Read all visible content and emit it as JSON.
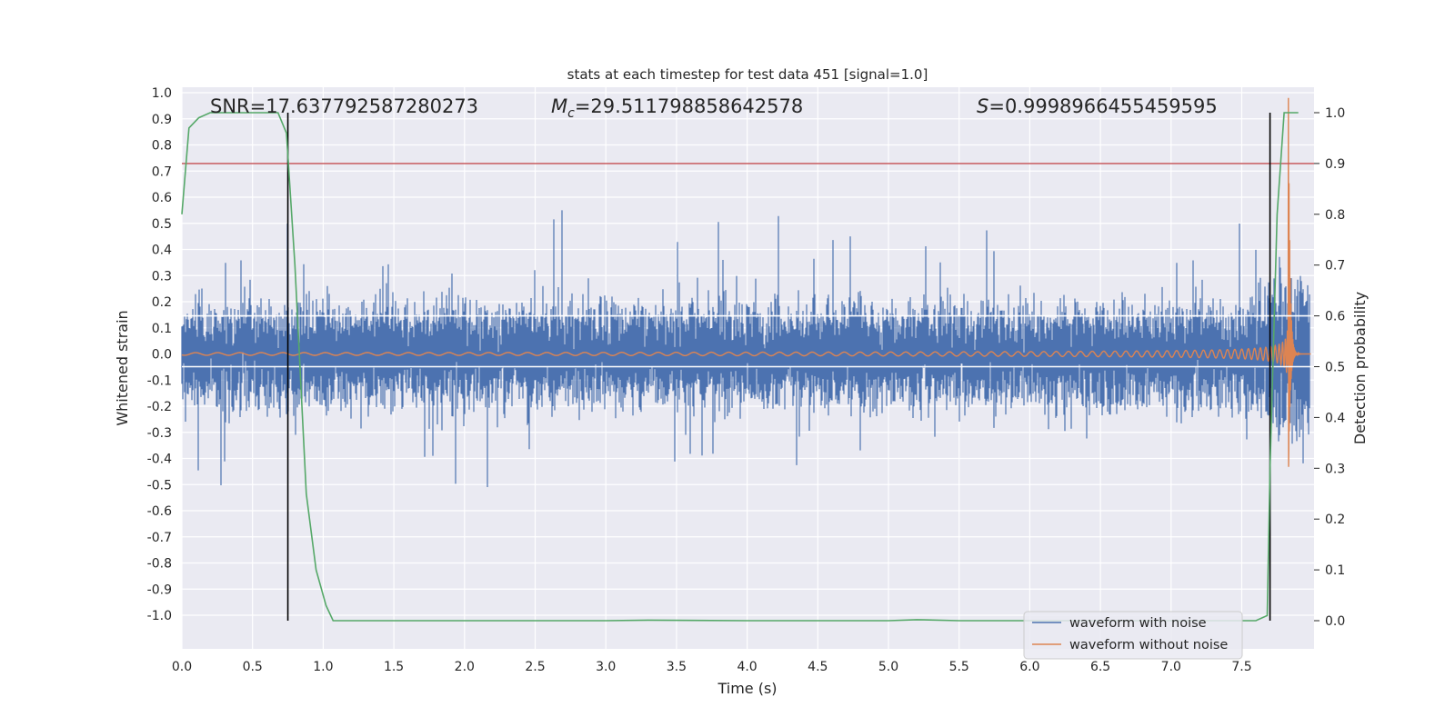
{
  "chart_data": {
    "type": "line",
    "title": "stats at each timestep for test data 451 [signal=1.0]",
    "xlabel": "Time (s)",
    "ylabel": "Whitened strain",
    "y2label": "Detection probability",
    "xlim": [
      0.0,
      8.0
    ],
    "ylim": [
      -1.1,
      1.02
    ],
    "y2lim": [
      -0.047,
      1.04
    ],
    "grid": true,
    "xticks": [
      "0.0",
      "0.5",
      "1.0",
      "1.5",
      "2.0",
      "2.5",
      "3.0",
      "3.5",
      "4.0",
      "4.5",
      "5.0",
      "5.5",
      "6.0",
      "6.5",
      "7.0",
      "7.5"
    ],
    "yticks": [
      "1.0",
      "0.9",
      "0.8",
      "0.7",
      "0.6",
      "0.5",
      "0.4",
      "0.3",
      "0.2",
      "0.1",
      "0.0",
      "-0.1",
      "-0.2",
      "-0.3",
      "-0.4",
      "-0.5",
      "-0.6",
      "-0.7",
      "-0.8",
      "-0.9",
      "-1.0"
    ],
    "y2ticks": [
      "1.0",
      "0.9",
      "0.8",
      "0.7",
      "0.6",
      "0.5",
      "0.4",
      "0.3",
      "0.2",
      "0.1",
      "0.0"
    ],
    "annotations": {
      "snr": "SNR=17.637792587280273",
      "mc_symbol": "M",
      "mc_sub": "c",
      "mc_value": "=29.511798858642578",
      "s_symbol": "S",
      "s_value": "=0.9998966455459595"
    },
    "series": [
      {
        "name": "waveform with noise",
        "color": "#4c72b0",
        "noise_sigma": 0.1,
        "typical_peak": 0.35,
        "max_abs": 0.55
      },
      {
        "name": "waveform without noise",
        "color": "#dd8452",
        "chirp_start_s": 0.0,
        "merger_s": 7.83,
        "amplitude_at_7_s": 0.03,
        "peak_amplitude": 0.98
      },
      {
        "name": "detection probability",
        "color": "#55a868",
        "axis": "right",
        "t": [
          0.0,
          0.05,
          0.12,
          0.2,
          0.4,
          0.55,
          0.68,
          0.74,
          0.8,
          0.88,
          0.95,
          1.02,
          1.07,
          1.12,
          2.0,
          3.0,
          3.3,
          4.0,
          4.5,
          5.0,
          5.2,
          5.5,
          6.0,
          7.0,
          7.6,
          7.68,
          7.7,
          7.75,
          7.8,
          7.9
        ],
        "p": [
          0.8,
          0.97,
          0.99,
          1.0,
          1.0,
          1.0,
          1.0,
          0.96,
          0.7,
          0.25,
          0.1,
          0.03,
          0.0,
          0.0,
          0.0,
          0.0,
          0.001,
          0.0,
          0.0,
          0.0,
          0.002,
          0.0,
          0.0,
          0.0,
          0.0,
          0.01,
          0.3,
          0.8,
          1.0,
          1.0
        ]
      }
    ],
    "threshold_line": {
      "axis": "right",
      "value": 0.9,
      "color": "#c44e52"
    },
    "white_lines_right": [
      0.6,
      0.5
    ],
    "vertical_markers_s": [
      0.75,
      7.7
    ]
  },
  "legend": {
    "with_noise": "waveform with noise",
    "without_noise": "waveform without noise",
    "with_noise_color": "#4c72b0",
    "without_noise_color": "#dd8452"
  },
  "colors": {
    "plot_bg": "#eaeaf2",
    "grid": "#ffffff",
    "noise": "#4c72b0",
    "clean": "#dd8452",
    "prob": "#55a868",
    "threshold": "#c44e52",
    "marker": "#000000"
  }
}
